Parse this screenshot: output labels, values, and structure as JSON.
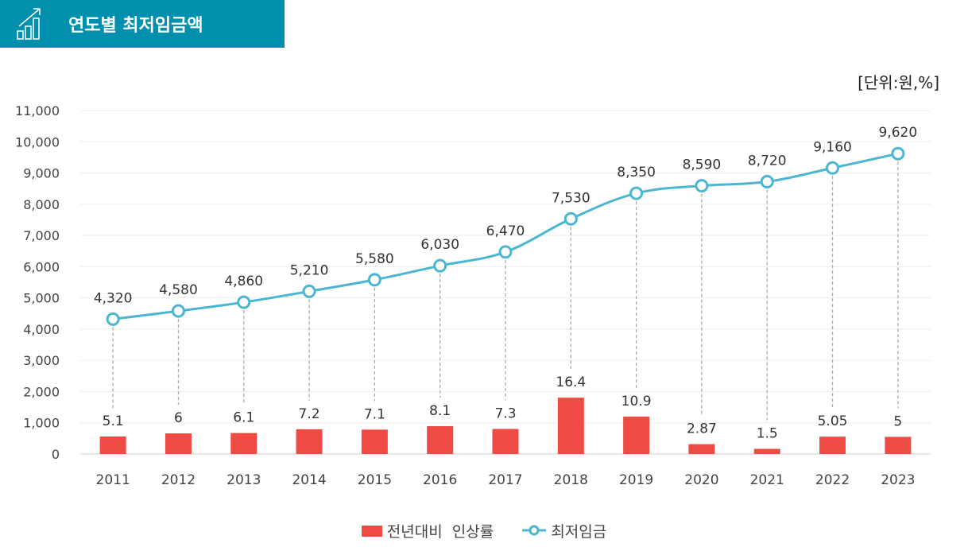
{
  "header": {
    "title": "연도별 최저임금액",
    "icon": "chart-growth-icon"
  },
  "unit_label": "[단위:원,%]",
  "chart_data": {
    "type": "bar+line",
    "categories": [
      "2011",
      "2012",
      "2013",
      "2014",
      "2015",
      "2016",
      "2017",
      "2018",
      "2019",
      "2020",
      "2021",
      "2022",
      "2023"
    ],
    "series": [
      {
        "name": "전년대비  인상률",
        "type": "bar",
        "color": "#ef4b45",
        "values": [
          5.1,
          6,
          6.1,
          7.2,
          7.1,
          8.1,
          7.3,
          16.4,
          10.9,
          2.87,
          1.5,
          5.05,
          5
        ],
        "labels": [
          "5.1",
          "6",
          "6.1",
          "7.2",
          "7.1",
          "8.1",
          "7.3",
          "16.4",
          "10.9",
          "2.87",
          "1.5",
          "5.05",
          "5"
        ]
      },
      {
        "name": "최저임금",
        "type": "line",
        "color": "#4ab6d2",
        "values": [
          4320,
          4580,
          4860,
          5210,
          5580,
          6030,
          6470,
          7530,
          8350,
          8590,
          8720,
          9160,
          9620
        ],
        "labels": [
          "4,320",
          "4,580",
          "4,860",
          "5,210",
          "5,580",
          "6,030",
          "6,470",
          "7,530",
          "8,350",
          "8,590",
          "8,720",
          "9,160",
          "9,620"
        ]
      }
    ],
    "ylim": [
      0,
      11000
    ],
    "yticks": [
      "0",
      "1,000",
      "2,000",
      "3,000",
      "4,000",
      "5,000",
      "6,000",
      "7,000",
      "8,000",
      "9,000",
      "10,000",
      "11,000"
    ],
    "grid": true,
    "legend": "bottom"
  }
}
